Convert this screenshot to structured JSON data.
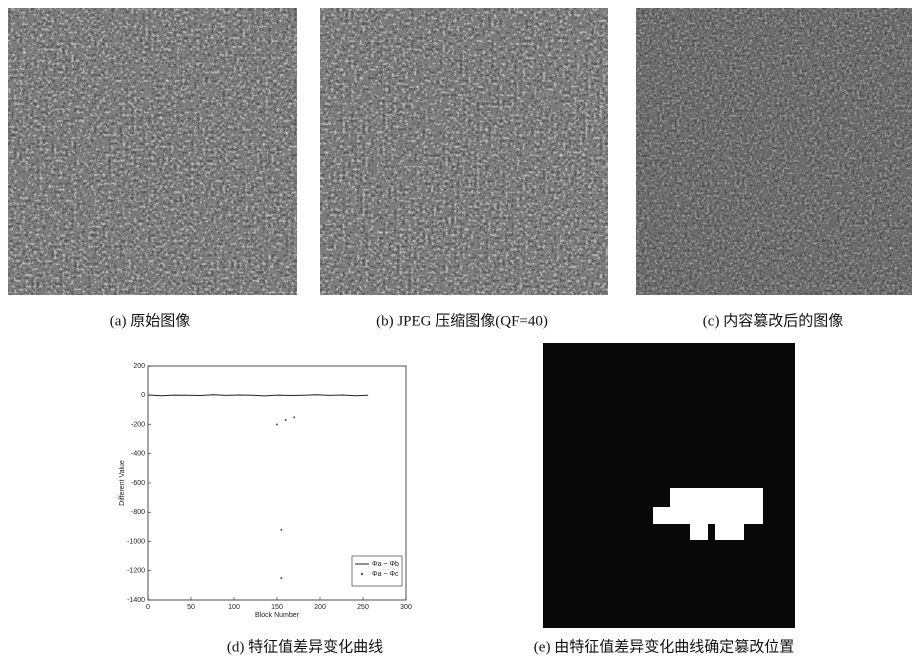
{
  "captions": [
    "(a) 原始图像",
    "(b) JPEG 压缩图像(QF=40)",
    "(c) 内容篡改后的图像",
    "(d) 特征值差异变化曲线",
    "(e) 由特征值差异变化曲线确定篡改位置"
  ],
  "chart_data": {
    "type": "line",
    "xlabel": "Block Number",
    "ylabel": "Different Value",
    "xlim": [
      0,
      300
    ],
    "xticks": [
      0,
      50,
      100,
      150,
      200,
      250,
      300
    ],
    "ylim": [
      -1400,
      200
    ],
    "yticks": [
      200,
      0,
      -200,
      -400,
      -600,
      -800,
      -1000,
      -1200,
      -1400
    ],
    "legend": "lower right",
    "series": [
      {
        "name": "Φa − Φb",
        "color": "#222222",
        "style": "line",
        "x": [
          1,
          16,
          31,
          46,
          61,
          76,
          91,
          106,
          121,
          136,
          151,
          166,
          181,
          196,
          211,
          226,
          241,
          256
        ],
        "values": [
          2,
          -3,
          1,
          0,
          -2,
          3,
          -1,
          2,
          0,
          -4,
          1,
          -2,
          0,
          3,
          -1,
          2,
          -3,
          0
        ]
      },
      {
        "name": "Φa − Φc",
        "color": "#555555",
        "style": "points",
        "x": [
          150,
          160,
          170,
          155,
          155
        ],
        "values": [
          -200,
          -170,
          -150,
          -920,
          -1250
        ]
      }
    ]
  }
}
